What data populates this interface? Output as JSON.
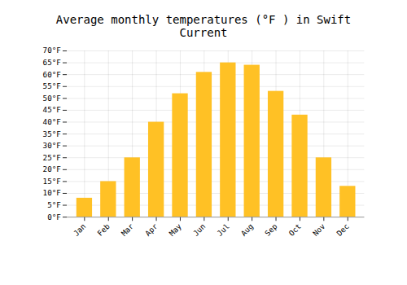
{
  "chart_data": {
    "type": "bar",
    "title": "Average monthly temperatures (°F ) in Swift Current",
    "categories": [
      "Jan",
      "Feb",
      "Mar",
      "Apr",
      "May",
      "Jun",
      "Jul",
      "Aug",
      "Sep",
      "Oct",
      "Nov",
      "Dec"
    ],
    "values": [
      8,
      15,
      25,
      40,
      52,
      61,
      65,
      64,
      53,
      43,
      25,
      13
    ],
    "color": "#FFC125",
    "ylim": [
      0,
      70
    ],
    "yticks": [
      {
        "value": 0,
        "label": "0°F"
      },
      {
        "value": 5,
        "label": "5°F"
      },
      {
        "value": 10,
        "label": "10°F"
      },
      {
        "value": 15,
        "label": "15°F"
      },
      {
        "value": 20,
        "label": "20°F"
      },
      {
        "value": 25,
        "label": "25°F"
      },
      {
        "value": 30,
        "label": "30°F"
      },
      {
        "value": 35,
        "label": "35°F"
      },
      {
        "value": 40,
        "label": "40°F"
      },
      {
        "value": 45,
        "label": "45°F"
      },
      {
        "value": 50,
        "label": "50°F"
      },
      {
        "value": 55,
        "label": "55°F"
      },
      {
        "value": 60,
        "label": "60°F"
      },
      {
        "value": 65,
        "label": "65°F"
      },
      {
        "value": 70,
        "label": "70°F"
      }
    ],
    "grid": true
  }
}
